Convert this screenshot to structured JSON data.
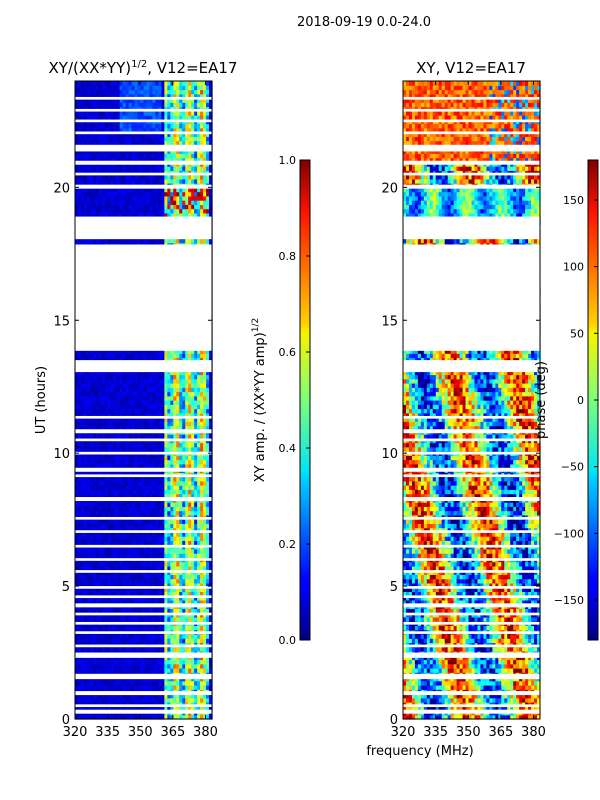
{
  "figure_title": "2018-09-19 0.0-24.0",
  "shared_xlabel": "frequency (MHz)",
  "chart_data": [
    {
      "type": "heatmap",
      "title_main": "XY/(XX*YY)",
      "title_sup": "1/2",
      "title_rest": ", V12=EA17",
      "xlabel": "",
      "ylabel": "UT (hours)",
      "xlim": [
        320,
        383
      ],
      "ylim": [
        0,
        24
      ],
      "xticks": [
        320,
        335,
        350,
        365,
        380
      ],
      "yticks": [
        0,
        5,
        10,
        15,
        20
      ],
      "quantity": "amplitude ratio",
      "bright_band_mhz": [
        361,
        381
      ],
      "colorbar": {
        "label_main": "XY amp. / (XX*YY amp)",
        "label_sup": "1/2",
        "range": [
          0.0,
          1.0
        ],
        "ticks": [
          "0.0",
          "0.2",
          "0.4",
          "0.6",
          "0.8",
          "1.0"
        ],
        "colormap": "jet"
      }
    },
    {
      "type": "heatmap",
      "title": "XY, V12=EA17",
      "xlabel": "frequency (MHz)",
      "ylabel": "",
      "xlim": [
        320,
        383
      ],
      "ylim": [
        0,
        24
      ],
      "xticks": [
        320,
        335,
        350,
        365,
        380
      ],
      "yticks": [
        0,
        5,
        10,
        15,
        20
      ],
      "quantity": "phase",
      "colorbar": {
        "label": "phase (deg)",
        "range": [
          -180,
          180
        ],
        "ticks": [
          "150",
          "100",
          "50",
          "0",
          "−50",
          "−100",
          "−150"
        ],
        "colormap": "jet"
      }
    }
  ],
  "flagged_gaps_ut_hours": [
    [
      0.2,
      0.35
    ],
    [
      0.45,
      0.55
    ],
    [
      0.9,
      1.05
    ],
    [
      1.5,
      1.7
    ],
    [
      2.3,
      2.5
    ],
    [
      2.7,
      2.8
    ],
    [
      3.2,
      3.3
    ],
    [
      3.55,
      3.65
    ],
    [
      3.9,
      4.0
    ],
    [
      4.2,
      4.35
    ],
    [
      4.55,
      4.65
    ],
    [
      4.9,
      5.0
    ],
    [
      5.5,
      5.6
    ],
    [
      5.95,
      6.05
    ],
    [
      6.45,
      6.55
    ],
    [
      7.0,
      7.1
    ],
    [
      7.5,
      7.6
    ],
    [
      8.2,
      8.35
    ],
    [
      9.1,
      9.2
    ],
    [
      9.3,
      9.45
    ],
    [
      9.95,
      10.05
    ],
    [
      10.45,
      10.55
    ],
    [
      10.75,
      10.9
    ],
    [
      11.3,
      11.4
    ],
    [
      13.05,
      13.5
    ],
    [
      13.85,
      17.85
    ],
    [
      18.05,
      18.9
    ],
    [
      19.95,
      20.1
    ],
    [
      20.45,
      20.55
    ],
    [
      20.85,
      21.0
    ],
    [
      21.35,
      21.6
    ],
    [
      22.0,
      22.1
    ],
    [
      22.45,
      22.55
    ],
    [
      22.85,
      22.95
    ],
    [
      23.3,
      23.4
    ]
  ]
}
